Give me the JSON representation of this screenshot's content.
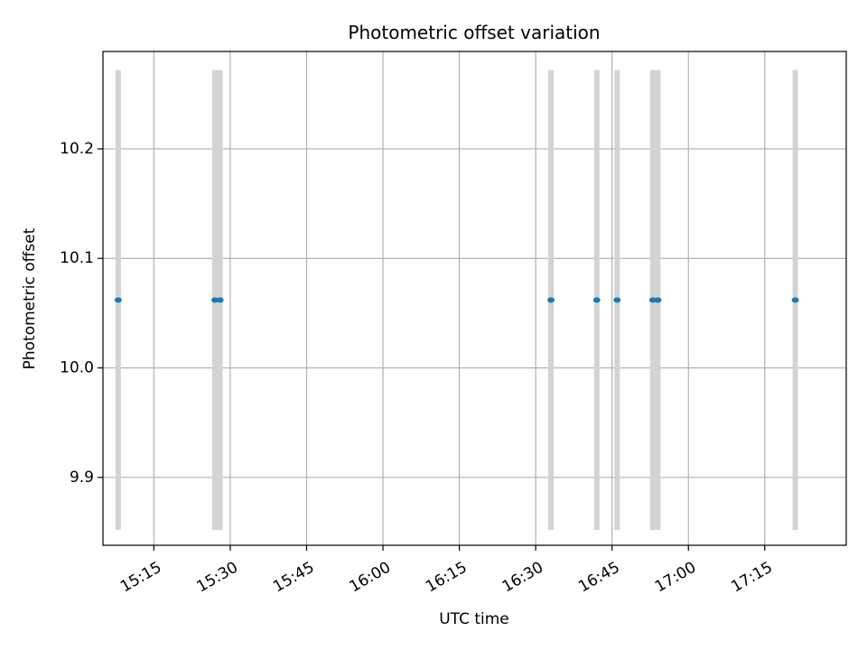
{
  "chart_data": {
    "type": "scatter",
    "title": "Photometric offset variation",
    "xlabel": "UTC time",
    "ylabel": "Photometric offset",
    "grid": true,
    "x_tick_labels": [
      "15:15",
      "15:30",
      "15:45",
      "16:00",
      "16:15",
      "16:30",
      "16:45",
      "17:00",
      "17:15"
    ],
    "y_tick_labels": [
      "9.9",
      "10.0",
      "10.1",
      "10.2"
    ],
    "y_ticks": [
      9.9,
      10.0,
      10.1,
      10.2
    ],
    "xlim": [
      "15:05",
      "17:31"
    ],
    "ylim": [
      9.838,
      10.289
    ],
    "series": [
      {
        "x": [
          "15:08",
          "15:27",
          "15:28",
          "16:33",
          "16:42",
          "16:46",
          "16:53",
          "16:54",
          "17:21"
        ],
        "y": [
          10.062,
          10.062,
          10.062,
          10.062,
          10.062,
          10.062,
          10.062,
          10.062,
          10.062
        ],
        "yerr": [
          0.21,
          0.21,
          0.21,
          0.21,
          0.21,
          0.21,
          0.21,
          0.21,
          0.21
        ]
      }
    ],
    "colors": {
      "points": "#1f77b4",
      "error_bars": "#d3d3d3",
      "grid": "#b0b0b0",
      "axes": "#000000"
    }
  }
}
